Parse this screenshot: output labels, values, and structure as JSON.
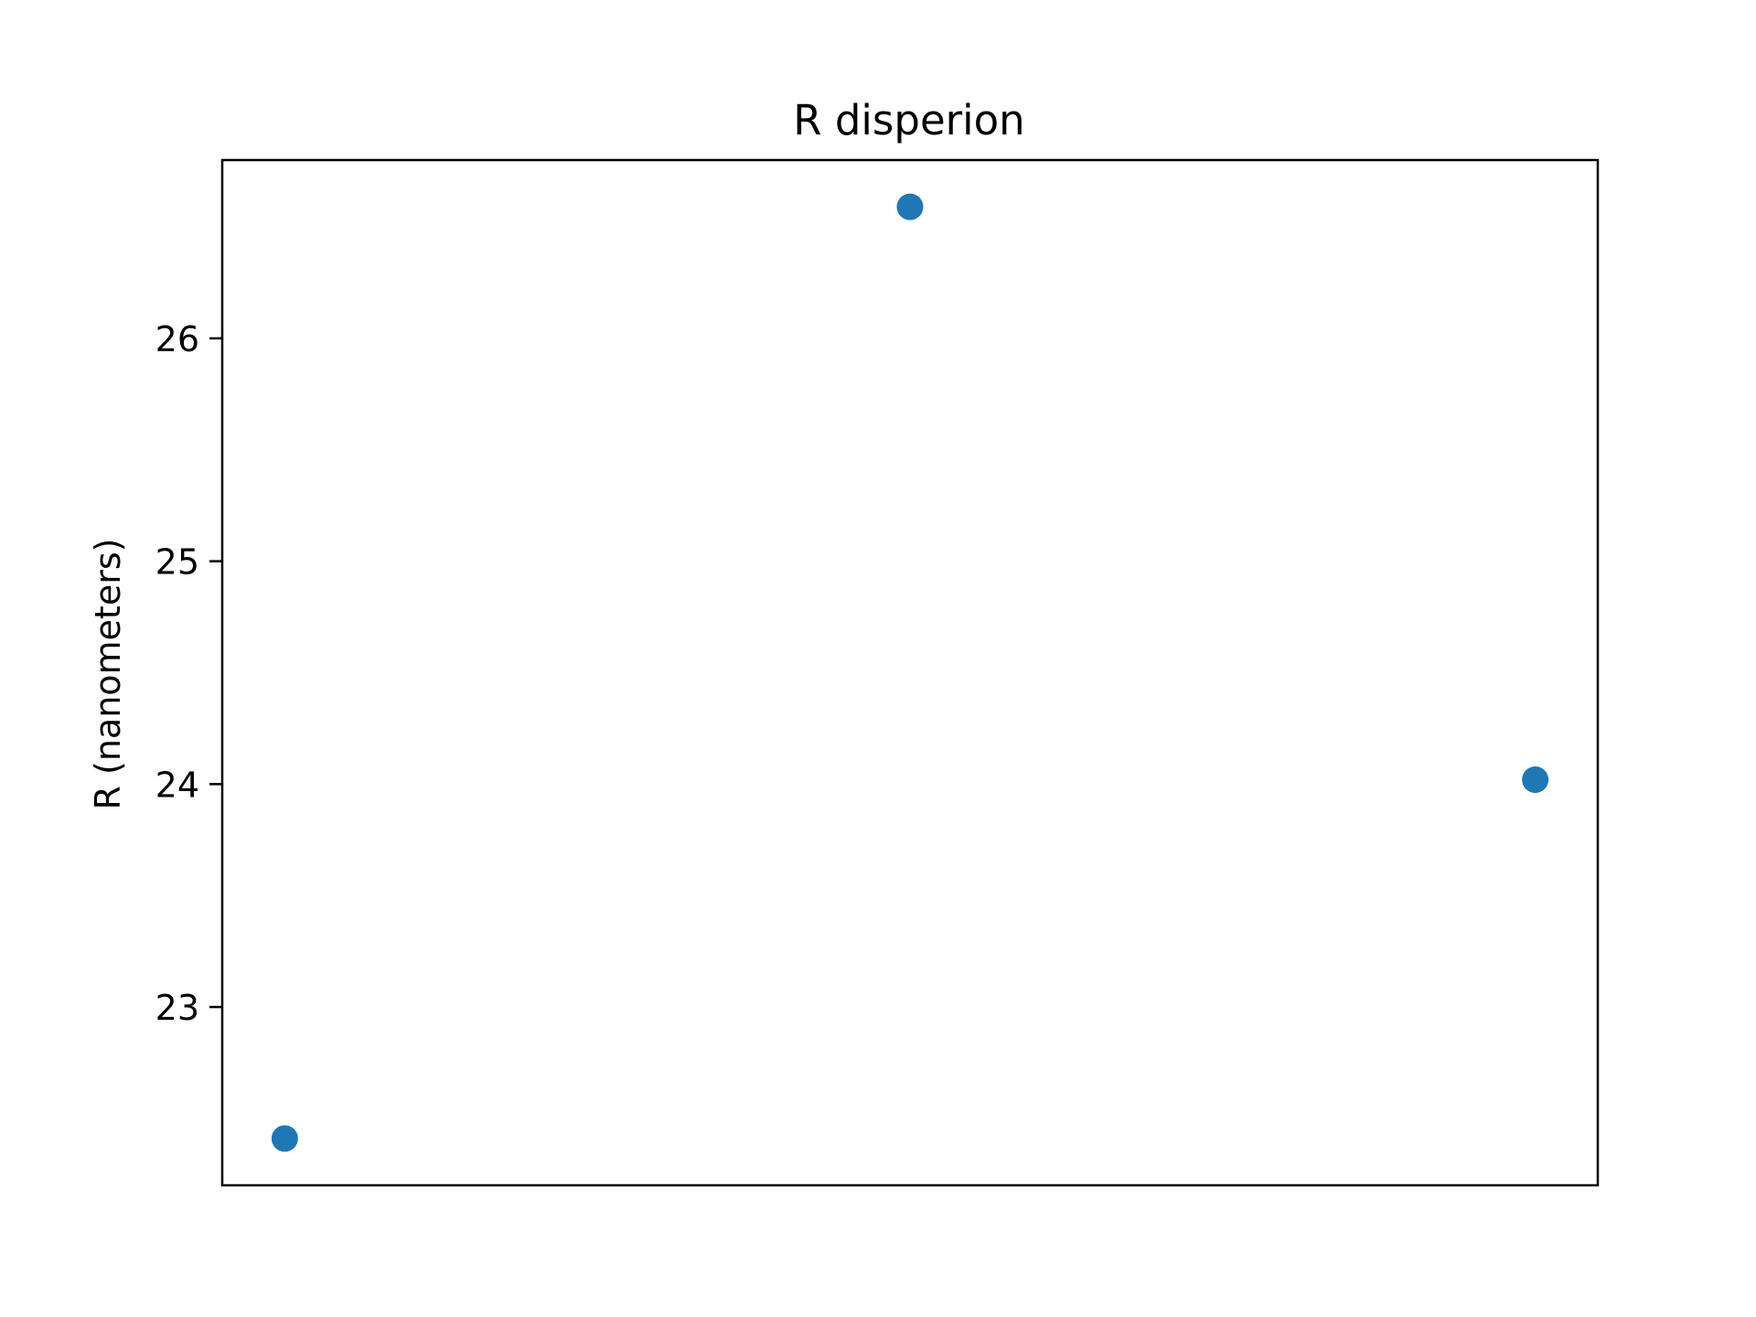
{
  "chart_data": {
    "type": "scatter",
    "title": "R disperion",
    "xlabel": "",
    "ylabel": "R (nanometers)",
    "x": [
      0,
      1,
      2
    ],
    "y": [
      22.41,
      26.59,
      24.02
    ],
    "ylim": [
      22.2,
      26.8
    ],
    "y_ticks": [
      23,
      24,
      25,
      26
    ],
    "x_ticks_shown": false,
    "grid": false,
    "legend": "none",
    "marker_color": "#1f77b4"
  }
}
